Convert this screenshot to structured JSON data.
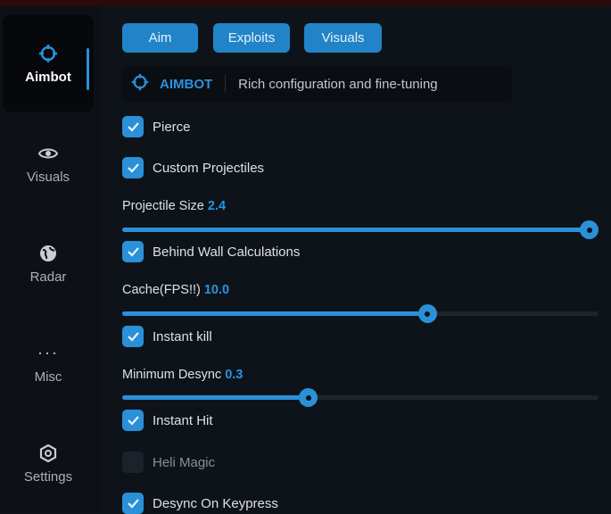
{
  "sidebar": {
    "items": [
      {
        "label": "Aimbot",
        "icon": "crosshair-icon",
        "active": true
      },
      {
        "label": "Visuals",
        "icon": "eye-icon"
      },
      {
        "label": "Radar",
        "icon": "globe-icon"
      },
      {
        "label": "Misc",
        "icon": "ellipsis-icon"
      },
      {
        "label": "Settings",
        "icon": "gear-icon"
      }
    ]
  },
  "tabs": [
    "Aim",
    "Exploits",
    "Visuals"
  ],
  "header": {
    "title": "AIMBOT",
    "subtitle": "Rich configuration and fine-tuning",
    "icon": "crosshair-icon"
  },
  "options": {
    "pierce": {
      "label": "Pierce",
      "checked": true
    },
    "custom_projectiles": {
      "label": "Custom Projectiles",
      "checked": true
    },
    "projectile_size": {
      "label": "Projectile Size",
      "value": "2.4",
      "fraction": 0.98
    },
    "behind_wall": {
      "label": "Behind Wall Calculations",
      "checked": true
    },
    "cache": {
      "label": "Cache(FPS!!)",
      "value": "10.0",
      "fraction": 0.64
    },
    "instant_kill": {
      "label": "Instant kill",
      "checked": true
    },
    "min_desync": {
      "label": "Minimum Desync",
      "value": "0.3",
      "fraction": 0.39
    },
    "instant_hit": {
      "label": "Instant Hit",
      "checked": true
    },
    "heli_magic": {
      "label": "Heli Magic",
      "checked": false
    },
    "desync_keypress": {
      "label": "Desync On Keypress",
      "checked": true
    }
  },
  "colors": {
    "accent": "#2a90d8",
    "background": "#0e131a"
  }
}
